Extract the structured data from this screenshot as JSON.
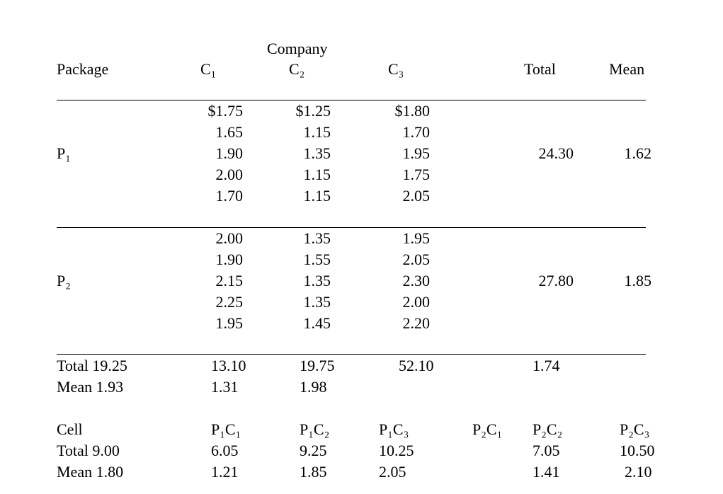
{
  "header": {
    "group_label": "Company",
    "columns": [
      "Package",
      "C₁",
      "C₂",
      "C₃",
      "Total",
      "Mean"
    ]
  },
  "table": {
    "groups": [
      {
        "label": "P₁",
        "rows": [
          [
            "$1.75",
            "$1.25",
            "$1.80"
          ],
          [
            "1.65",
            "1.15",
            "1.70"
          ],
          [
            "1.90",
            "1.35",
            "1.95"
          ],
          [
            "2.00",
            "1.15",
            "1.75"
          ],
          [
            "1.70",
            "1.15",
            "2.05"
          ]
        ],
        "total": "24.30",
        "mean": "1.62"
      },
      {
        "label": "P₂",
        "rows": [
          [
            "2.00",
            "1.35",
            "1.95"
          ],
          [
            "1.90",
            "1.55",
            "2.05"
          ],
          [
            "2.15",
            "1.35",
            "2.30"
          ],
          [
            "2.25",
            "1.35",
            "2.00"
          ],
          [
            "1.95",
            "1.45",
            "2.20"
          ]
        ],
        "total": "27.80",
        "mean": "1.85"
      }
    ]
  },
  "summary": {
    "total_row": [
      "Total 19.25",
      "13.10",
      "19.75",
      "52.10",
      "1.74"
    ],
    "mean_row": [
      "Mean 1.93",
      "1.31",
      "1.98"
    ]
  },
  "cells": {
    "header": [
      "Cell",
      "P₁C₁",
      "P₁C₂",
      "P₁C₃",
      "P₂C₁",
      "P₂C₂",
      "P₂C₃"
    ],
    "total": [
      "Total 9.00",
      "6.05",
      "9.25",
      "10.25",
      null,
      "7.05",
      "10.50"
    ],
    "mean": [
      "Mean 1.80",
      "1.21",
      "1.85",
      "2.05",
      null,
      "1.41",
      "2.10"
    ]
  }
}
